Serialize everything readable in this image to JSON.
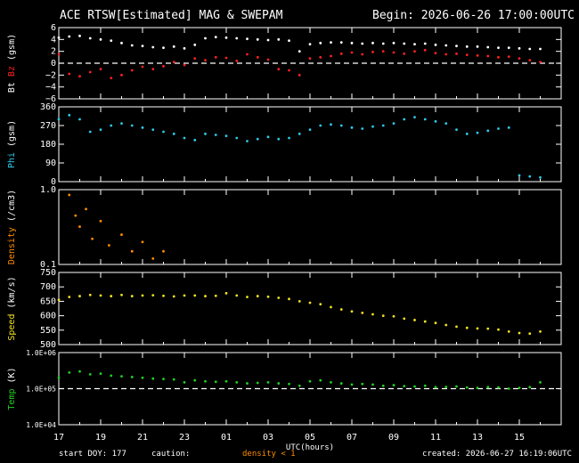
{
  "header": {
    "title": "ACE RTSW[Estimated] MAG & SWEPAM",
    "begin": "Begin: 2026-06-26 17:00:00UTC"
  },
  "footer": {
    "start_doy": "start DOY: 177",
    "caution": "caution:",
    "density_note": "density < 1",
    "created": "created: 2026-06-27 16:19:06UTC"
  },
  "colors": {
    "bt": "#ffffff",
    "bz": "#ff2020",
    "phi": "#2fc8e8",
    "density": "#ff8c00",
    "speed": "#f0e020",
    "temp": "#20d020",
    "axes": "#ffffff"
  },
  "chart_data": [
    {
      "id": "mag",
      "type": "scatter",
      "ylabel_parts": [
        "Bt",
        "Bz",
        "(gsm)"
      ],
      "yticks": [
        "6",
        "4",
        "2",
        "0",
        "−2",
        "−4",
        "−6"
      ],
      "ytick_values": [
        6,
        4,
        2,
        0,
        -2,
        -4,
        -6
      ],
      "ylim": [
        -6,
        6
      ],
      "reference_line": 0,
      "series": [
        {
          "name": "Bt",
          "color": "#ffffff",
          "x": [
            17,
            17.5,
            18,
            18.5,
            19,
            19.5,
            20,
            20.5,
            21,
            21.5,
            22,
            22.5,
            23,
            23.5,
            24,
            24.5,
            25,
            25.5,
            26,
            26.5,
            27,
            27.5,
            28,
            28.5,
            29,
            29.5,
            30,
            30.5,
            31,
            31.5,
            32,
            32.5,
            33,
            33.5,
            34,
            34.5,
            35,
            35.5,
            36,
            36.5,
            37,
            37.5,
            38,
            38.5,
            39,
            39.5,
            40
          ],
          "y": [
            4.3,
            4.5,
            4.6,
            4.2,
            4.0,
            3.8,
            3.4,
            3.0,
            2.9,
            2.7,
            2.6,
            2.8,
            2.5,
            3.1,
            4.2,
            4.4,
            4.3,
            4.2,
            4.1,
            4.0,
            3.9,
            4.0,
            3.8,
            2.0,
            3.2,
            3.4,
            3.5,
            3.5,
            3.4,
            3.3,
            3.4,
            3.3,
            3.4,
            3.3,
            3.2,
            3.3,
            3.1,
            3.0,
            2.9,
            2.8,
            2.8,
            2.7,
            2.6,
            2.6,
            2.5,
            2.4,
            2.4
          ]
        },
        {
          "name": "Bz",
          "color": "#ff2020",
          "x": [
            17,
            17.5,
            18,
            18.5,
            19,
            19.5,
            20,
            20.5,
            21,
            21.5,
            22,
            22.5,
            23,
            23.5,
            24,
            24.5,
            25,
            25.5,
            26,
            26.5,
            27,
            27.5,
            28,
            28.5,
            29,
            29.5,
            30,
            30.5,
            31,
            31.5,
            32,
            32.5,
            33,
            33.5,
            34,
            34.5,
            35,
            35.5,
            36,
            36.5,
            37,
            37.5,
            38,
            38.5,
            39,
            39.5,
            40
          ],
          "y": [
            1.5,
            -1.8,
            -2.2,
            -1.5,
            -1.0,
            -2.5,
            -2.0,
            -1.2,
            -0.6,
            -1.0,
            -0.5,
            0.2,
            -0.3,
            0.8,
            0.5,
            1.0,
            0.9,
            0.4,
            1.5,
            1.0,
            0.6,
            -1.0,
            -1.2,
            -2.0,
            0.8,
            1.0,
            1.2,
            1.6,
            1.8,
            1.5,
            1.9,
            2.0,
            1.8,
            1.6,
            2.0,
            2.2,
            1.7,
            1.5,
            1.6,
            1.4,
            1.3,
            1.2,
            1.0,
            1.1,
            0.8,
            0.5,
            0.2
          ]
        }
      ]
    },
    {
      "id": "phi",
      "type": "scatter",
      "ylabel_parts": [
        "Phi",
        "(gsm)"
      ],
      "yticks": [
        "360",
        "270",
        "180",
        "90",
        "0"
      ],
      "ytick_values": [
        360,
        270,
        180,
        90,
        0
      ],
      "ylim": [
        0,
        360
      ],
      "series": [
        {
          "name": "Phi",
          "color": "#2fc8e8",
          "x": [
            17,
            17.5,
            18,
            18.5,
            19,
            19.5,
            20,
            20.5,
            21,
            21.5,
            22,
            22.5,
            23,
            23.5,
            24,
            24.5,
            25,
            25.5,
            26,
            26.5,
            27,
            27.5,
            28,
            28.5,
            29,
            29.5,
            30,
            30.5,
            31,
            31.5,
            32,
            32.5,
            33,
            33.5,
            34,
            34.5,
            35,
            35.5,
            36,
            36.5,
            37,
            37.5,
            38,
            38.5,
            39,
            39.5,
            40
          ],
          "y": [
            300,
            320,
            300,
            240,
            250,
            270,
            280,
            270,
            260,
            250,
            240,
            230,
            210,
            200,
            230,
            225,
            220,
            210,
            195,
            205,
            215,
            205,
            210,
            230,
            250,
            270,
            275,
            270,
            260,
            255,
            265,
            270,
            280,
            300,
            310,
            300,
            290,
            280,
            250,
            230,
            235,
            245,
            255,
            260,
            30,
            25,
            20
          ]
        }
      ]
    },
    {
      "id": "density",
      "type": "scatter",
      "ylabel_parts": [
        "Density",
        "(/cm3)"
      ],
      "yticks": [
        "1.0",
        "0.1"
      ],
      "ytick_values": [
        1.0,
        0.1
      ],
      "ylim": [
        0.1,
        1.0
      ],
      "log": true,
      "series": [
        {
          "name": "Density",
          "color": "#ff8c00",
          "x": [
            17.5,
            17.8,
            18.0,
            18.3,
            18.6,
            19.0,
            19.4,
            20.0,
            20.5,
            21.0,
            21.5,
            22.0
          ],
          "y": [
            0.85,
            0.45,
            0.32,
            0.55,
            0.22,
            0.38,
            0.18,
            0.25,
            0.15,
            0.2,
            0.12,
            0.15
          ]
        }
      ]
    },
    {
      "id": "speed",
      "type": "scatter",
      "ylabel_parts": [
        "Speed",
        "(km/s)"
      ],
      "yticks": [
        "750",
        "700",
        "650",
        "600",
        "550",
        "500"
      ],
      "ytick_values": [
        750,
        700,
        650,
        600,
        550,
        500
      ],
      "ylim": [
        500,
        750
      ],
      "series": [
        {
          "name": "Speed",
          "color": "#f0e020",
          "x": [
            17,
            17.5,
            18,
            18.5,
            19,
            19.5,
            20,
            20.5,
            21,
            21.5,
            22,
            22.5,
            23,
            23.5,
            24,
            24.5,
            25,
            25.5,
            26,
            26.5,
            27,
            27.5,
            28,
            28.5,
            29,
            29.5,
            30,
            30.5,
            31,
            31.5,
            32,
            32.5,
            33,
            33.5,
            34,
            34.5,
            35,
            35.5,
            36,
            36.5,
            37,
            37.5,
            38,
            38.5,
            39,
            39.5,
            40
          ],
          "y": [
            655,
            665,
            668,
            672,
            670,
            668,
            672,
            668,
            670,
            671,
            669,
            667,
            670,
            670,
            668,
            669,
            678,
            670,
            665,
            668,
            666,
            662,
            658,
            650,
            645,
            640,
            630,
            622,
            615,
            610,
            605,
            600,
            598,
            590,
            585,
            580,
            575,
            568,
            562,
            558,
            556,
            555,
            552,
            545,
            540,
            538,
            545
          ]
        }
      ]
    },
    {
      "id": "temp",
      "type": "scatter",
      "ylabel_parts": [
        "Temp",
        "(K)"
      ],
      "yticks": [
        "1.0E+06",
        "1.0E+05",
        "1.0E+04"
      ],
      "ytick_values": [
        1000000,
        100000,
        10000
      ],
      "ylim": [
        10000,
        1000000
      ],
      "log": true,
      "reference_line": 100000,
      "series": [
        {
          "name": "Temp",
          "color": "#20d020",
          "x": [
            17,
            17.5,
            18,
            18.5,
            19,
            19.5,
            20,
            20.5,
            21,
            21.5,
            22,
            22.5,
            23,
            23.5,
            24,
            24.5,
            25,
            25.5,
            26,
            26.5,
            27,
            27.5,
            28,
            28.5,
            29,
            29.5,
            30,
            30.5,
            31,
            31.5,
            32,
            32.5,
            33,
            33.5,
            34,
            34.5,
            35,
            35.5,
            36,
            36.5,
            37,
            37.5,
            38,
            38.5,
            39,
            39.5,
            40
          ],
          "y": [
            200000,
            280000,
            300000,
            250000,
            260000,
            230000,
            220000,
            210000,
            200000,
            190000,
            185000,
            180000,
            150000,
            170000,
            160000,
            155000,
            160000,
            150000,
            140000,
            145000,
            150000,
            140000,
            135000,
            120000,
            160000,
            170000,
            150000,
            140000,
            130000,
            135000,
            130000,
            120000,
            125000,
            118000,
            115000,
            120000,
            110000,
            112000,
            115000,
            108000,
            105000,
            110000,
            108000,
            100000,
            105000,
            110000,
            150000
          ]
        }
      ]
    }
  ],
  "xaxis": {
    "label": "UTC(hours)",
    "ticks": [
      "17",
      "19",
      "21",
      "23",
      "01",
      "03",
      "05",
      "07",
      "09",
      "11",
      "13",
      "15"
    ],
    "tick_positions": [
      17,
      19,
      21,
      23,
      25,
      27,
      29,
      31,
      33,
      35,
      37,
      39
    ],
    "xlim": [
      17,
      41
    ]
  }
}
